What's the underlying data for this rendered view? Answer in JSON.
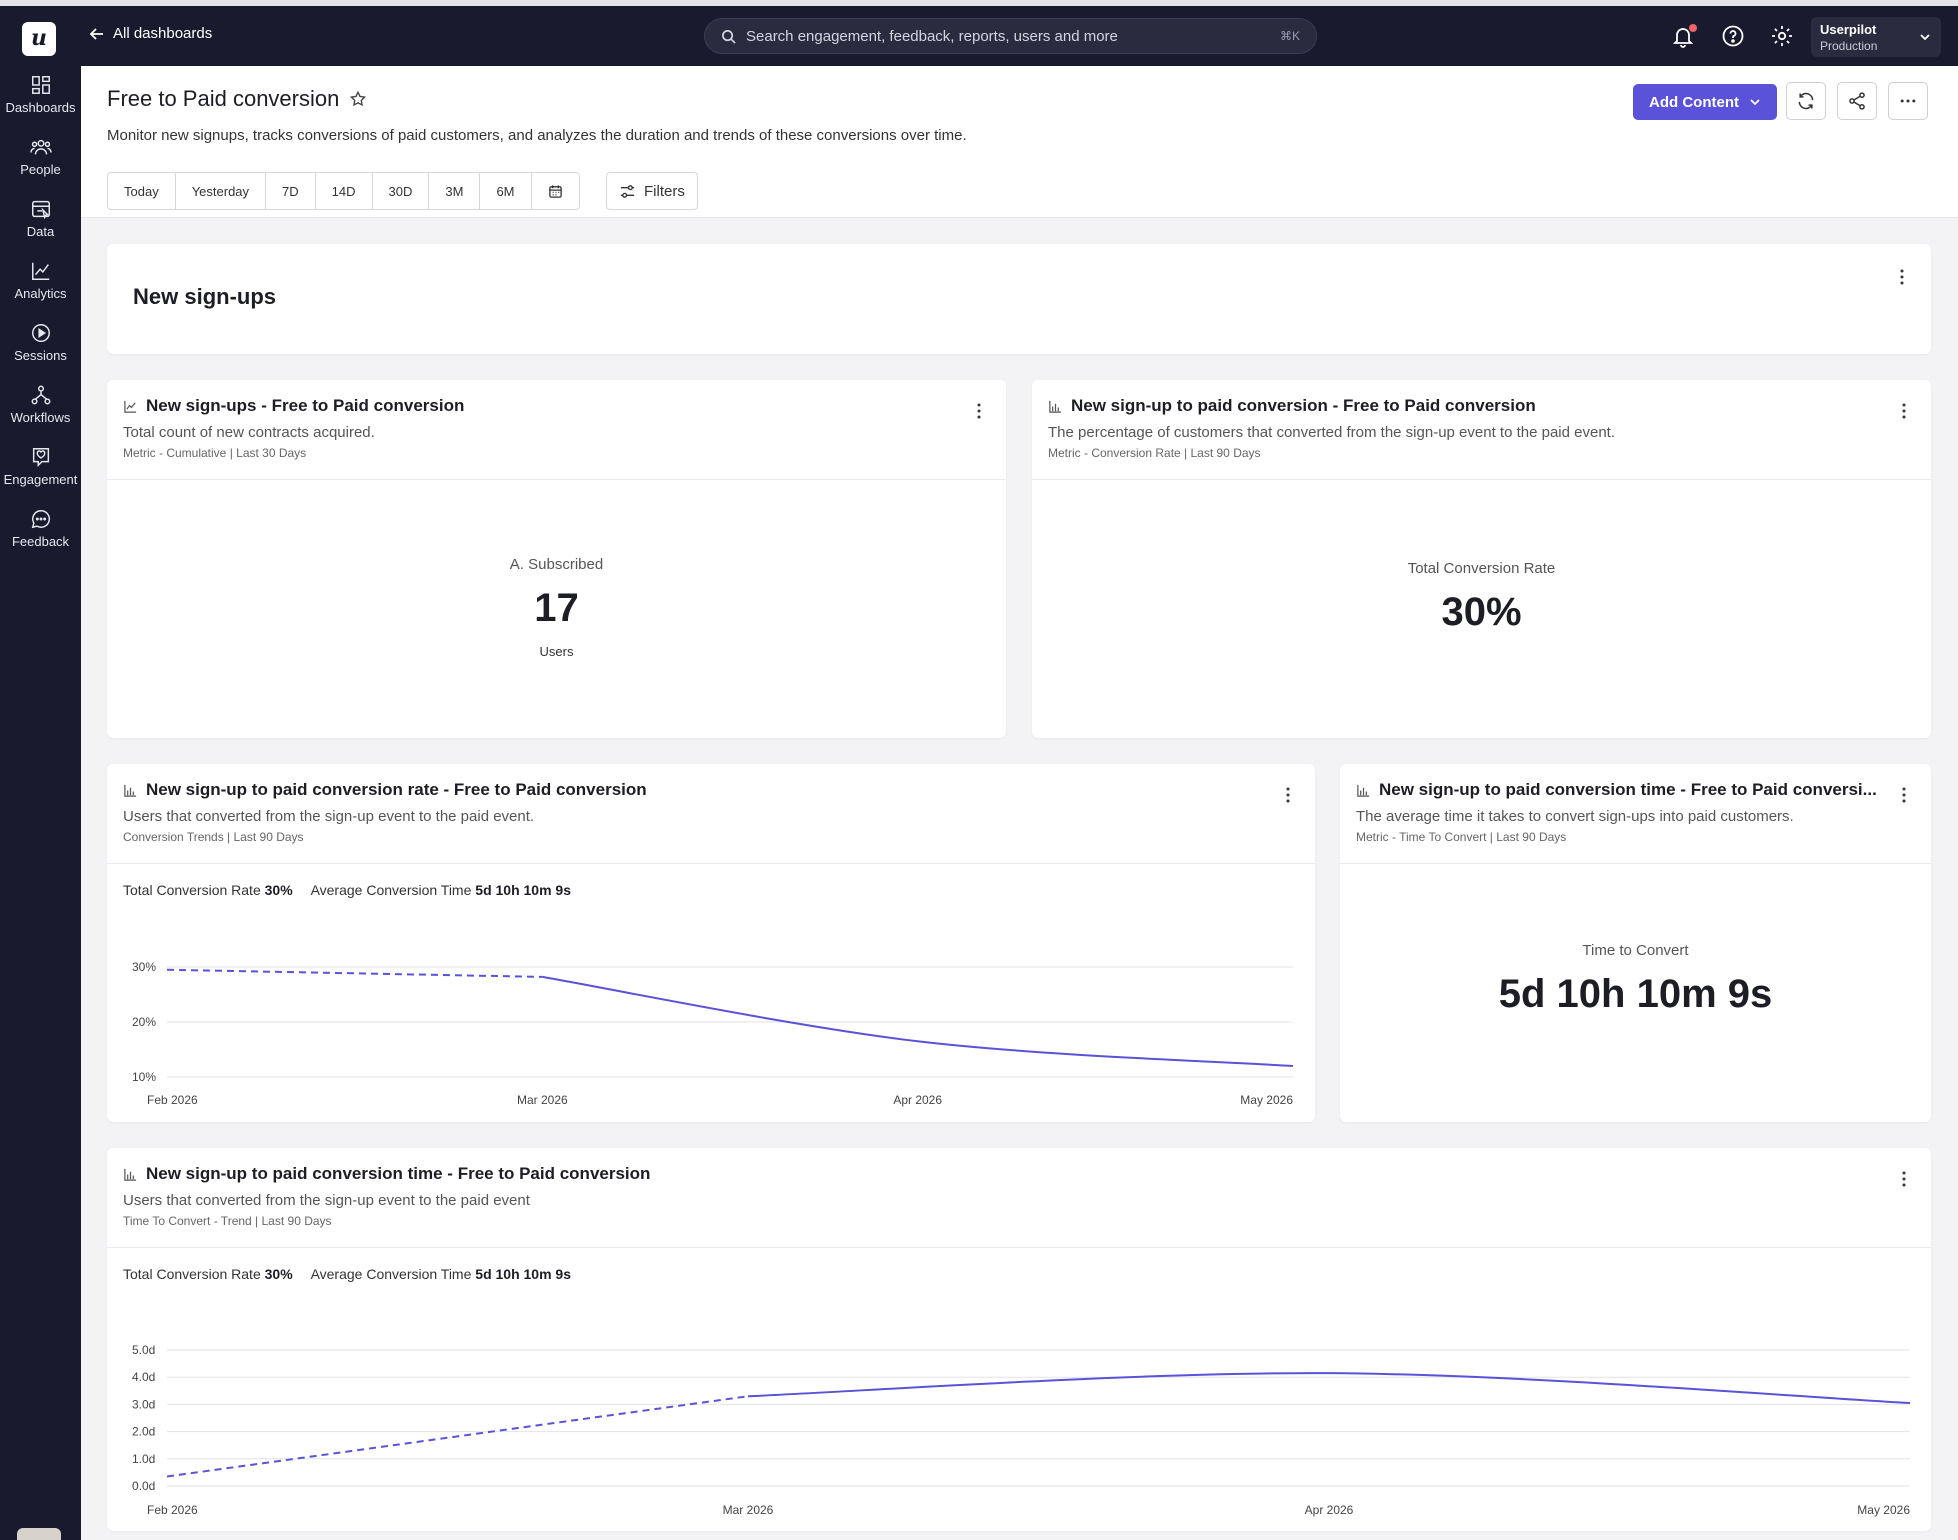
{
  "sidebar": {
    "logo": "u",
    "items": [
      {
        "label": "Dashboards",
        "icon": "dashboard-icon"
      },
      {
        "label": "People",
        "icon": "people-icon"
      },
      {
        "label": "Data",
        "icon": "data-icon"
      },
      {
        "label": "Analytics",
        "icon": "analytics-icon"
      },
      {
        "label": "Sessions",
        "icon": "sessions-icon"
      },
      {
        "label": "Workflows",
        "icon": "workflows-icon"
      },
      {
        "label": "Engagement",
        "icon": "engagement-icon"
      },
      {
        "label": "Feedback",
        "icon": "feedback-icon"
      }
    ]
  },
  "topbar": {
    "back_label": "All dashboards",
    "search_placeholder": "Search engagement, feedback, reports, users and more",
    "search_shortcut": "⌘K",
    "account_name": "Userpilot",
    "account_env": "Production"
  },
  "page": {
    "title": "Free to Paid conversion",
    "description": "Monitor new signups, tracks conversions of paid customers, and analyzes the duration and trends of these conversions over time.",
    "add_content_label": "Add Content",
    "ranges": [
      "Today",
      "Yesterday",
      "7D",
      "14D",
      "30D",
      "3M",
      "6M"
    ],
    "filters_label": "Filters"
  },
  "section": {
    "title": "New sign-ups"
  },
  "cards": {
    "signups": {
      "title": "New sign-ups - Free to Paid conversion",
      "subtitle": "Total count of new contracts acquired.",
      "meta": "Metric - Cumulative | Last 30 Days",
      "metric_label": "A. Subscribed",
      "metric_value": "17",
      "metric_unit": "Users"
    },
    "conversion": {
      "title": "New sign-up to paid conversion - Free to Paid conversion",
      "subtitle": "The percentage of customers that converted from the sign-up event to the paid event.",
      "meta": "Metric - Conversion Rate | Last 90 Days",
      "metric_label": "Total Conversion Rate",
      "metric_value": "30%"
    },
    "rate_trend": {
      "title": "New sign-up to paid conversion rate - Free to Paid conversion",
      "subtitle": "Users that converted from the sign-up event to the paid event.",
      "meta": "Conversion Trends | Last 90 Days",
      "summary_rate_label": "Total Conversion Rate",
      "summary_rate_value": "30%",
      "summary_time_label": "Average Conversion Time",
      "summary_time_value": "5d 10h 10m 9s"
    },
    "time_metric": {
      "title": "New sign-up to paid conversion time - Free to Paid conversi...",
      "subtitle": "The average time it takes to convert sign-ups into paid customers.",
      "meta": "Metric - Time To Convert | Last 90 Days",
      "metric_label": "Time to Convert",
      "metric_value": "5d 10h 10m 9s"
    },
    "time_trend": {
      "title": "New sign-up to paid conversion time - Free to Paid conversion",
      "subtitle": "Users that converted from the sign-up event to the paid event",
      "meta": "Time To Convert - Trend | Last 90 Days",
      "summary_rate_label": "Total Conversion Rate",
      "summary_rate_value": "30%",
      "summary_time_label": "Average Conversion Time",
      "summary_time_value": "5d 10h 10m 9s"
    }
  },
  "colors": {
    "accent": "#5a52d8",
    "sidebar": "#191a2e",
    "line": "#5a52d8"
  },
  "chart_data": [
    {
      "type": "line",
      "x": [
        "Feb 2026",
        "Mar 2026",
        "Apr 2026",
        "May 2026"
      ],
      "yticks": [
        "30%",
        "20%",
        "10%"
      ],
      "ylim": [
        10,
        30
      ],
      "points": [
        [
          0,
          29.5
        ],
        [
          1,
          28.2
        ],
        [
          2,
          16.5
        ],
        [
          3,
          12
        ]
      ],
      "dashed_until": 1,
      "grid": true
    },
    {
      "type": "line",
      "x": [
        "Feb 2026",
        "Mar 2026",
        "Apr 2026",
        "May 2026"
      ],
      "yticks": [
        "5.0d",
        "4.0d",
        "3.0d",
        "2.0d",
        "1.0d",
        "0.0d"
      ],
      "ylim": [
        0,
        5
      ],
      "points": [
        [
          0,
          0.35
        ],
        [
          1,
          3.3
        ],
        [
          2,
          4.15
        ],
        [
          3,
          3.05
        ]
      ],
      "dashed_until": 1,
      "grid": true
    }
  ]
}
